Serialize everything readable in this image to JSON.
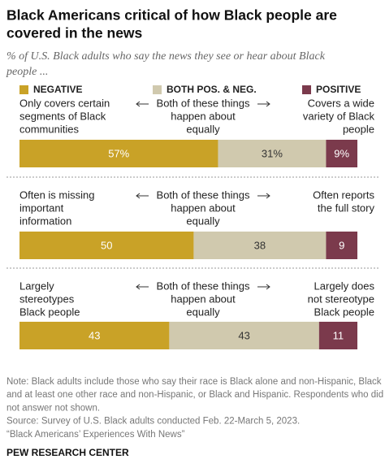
{
  "chart_data": {
    "type": "stacked-bar-h",
    "title": [
      "Black Americans critical of how Black people are",
      "covered in the news"
    ],
    "subtitle": [
      "% of U.S. Black adults who say the news they see or hear about Black",
      "people ..."
    ],
    "rows": [
      {
        "left": [
          "Only covers certain",
          "segments of Black",
          "communities"
        ],
        "middle": [
          "Both of these things",
          "happen about",
          "equally"
        ],
        "right": [
          "Covers a wide",
          "variety of Black",
          "people"
        ]
      },
      {
        "left": [
          "Often is missing",
          "important",
          "information"
        ],
        "middle": [
          "Both of these things",
          "happen about",
          "equally"
        ],
        "right": [
          "Often reports",
          "the full story"
        ]
      },
      {
        "left": [
          "Largely",
          "stereotypes",
          "Black people"
        ],
        "middle": [
          "Both of these things",
          "happen about",
          "equally"
        ],
        "right": [
          "Largely does",
          "not stereotype",
          "Black people"
        ]
      }
    ],
    "series": [
      {
        "name": "NEGATIVE",
        "color": "#c9a227",
        "text_color": "#ffffff",
        "values": [
          57,
          50,
          43
        ],
        "value_labels": [
          "57%",
          "50",
          "43"
        ]
      },
      {
        "name": "BOTH POS. & NEG.",
        "color": "#d0c9ae",
        "text_color": "#333333",
        "values": [
          31,
          38,
          43
        ],
        "value_labels": [
          "31%",
          "38",
          "43"
        ]
      },
      {
        "name": "POSITIVE",
        "color": "#7b3a4c",
        "text_color": "#ffffff",
        "values": [
          9,
          9,
          11
        ],
        "value_labels": [
          "9%",
          "9",
          "11"
        ]
      }
    ],
    "notes": [
      "Note: Black adults include those who say their race is Black alone and non-Hispanic, Black",
      "and at least one other race and non-Hispanic, or Black and Hispanic. Respondents who did",
      "not answer not shown.",
      "Source: Survey of U.S. Black adults conducted Feb. 22-March 5, 2023.",
      "“Black Americans’ Experiences With News”"
    ],
    "footer": "PEW RESEARCH CENTER"
  }
}
